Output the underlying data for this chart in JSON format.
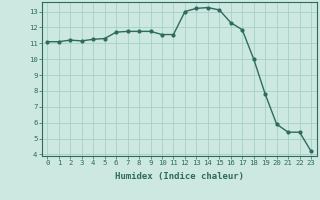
{
  "x": [
    0,
    1,
    2,
    3,
    4,
    5,
    6,
    7,
    8,
    9,
    10,
    11,
    12,
    13,
    14,
    15,
    16,
    17,
    18,
    19,
    20,
    21,
    22,
    23
  ],
  "y": [
    11.1,
    11.1,
    11.2,
    11.15,
    11.25,
    11.3,
    11.7,
    11.75,
    11.75,
    11.75,
    11.55,
    11.55,
    13.0,
    13.2,
    13.25,
    13.1,
    12.3,
    11.85,
    10.0,
    7.8,
    5.9,
    5.4,
    5.4,
    4.2
  ],
  "line_color": "#2e6b5e",
  "marker_color": "#2e6b5e",
  "bg_color": "#cce8e0",
  "grid_color": "#9ecdc0",
  "xlabel": "Humidex (Indice chaleur)",
  "xlim": [
    -0.5,
    23.5
  ],
  "ylim": [
    3.9,
    13.6
  ],
  "yticks": [
    4,
    5,
    6,
    7,
    8,
    9,
    10,
    11,
    12,
    13
  ],
  "xticks": [
    0,
    1,
    2,
    3,
    4,
    5,
    6,
    7,
    8,
    9,
    10,
    11,
    12,
    13,
    14,
    15,
    16,
    17,
    18,
    19,
    20,
    21,
    22,
    23
  ],
  "tick_label_fontsize": 5.2,
  "xlabel_fontsize": 6.5,
  "marker_size": 2.0,
  "line_width": 1.0
}
